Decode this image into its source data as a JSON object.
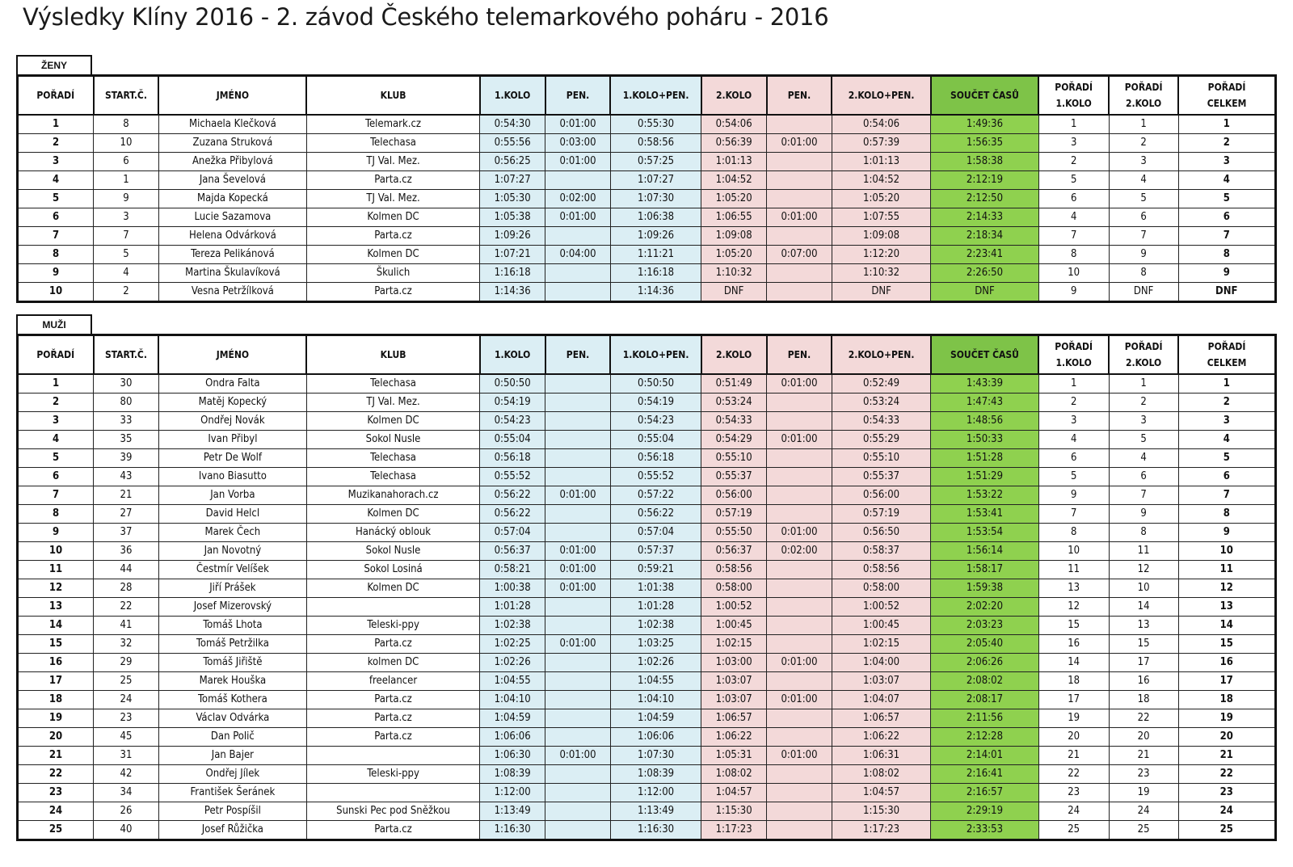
{
  "title": "Výsledky Klíny 2016 - 2. závod Českého telemarkového poháru - 2016",
  "colors": {
    "round1": "#dbeef4",
    "round2": "#f3d9d9",
    "total": "#8fd14f"
  },
  "headers": [
    "POŘADÍ",
    "START.Č.",
    "JMÉNO",
    "KLUB",
    "1.KOLO",
    "PEN.",
    "1.KOLO+PEN.",
    "2.KOLO",
    "PEN.",
    "2.KOLO+PEN.",
    "SOUČET ČASŮ",
    "POŘADÍ 1.KOLO",
    "POŘADÍ 2.KOLO",
    "POŘADÍ CELKEM"
  ],
  "sections": [
    {
      "label": "ŽENY",
      "rows": [
        [
          "1",
          "8",
          "Michaela Klečková",
          "Telemark.cz",
          "0:54:30",
          "0:01:00",
          "0:55:30",
          "0:54:06",
          "",
          "0:54:06",
          "1:49:36",
          "1",
          "1",
          "1"
        ],
        [
          "2",
          "10",
          "Zuzana Struková",
          "Telechasa",
          "0:55:56",
          "0:03:00",
          "0:58:56",
          "0:56:39",
          "0:01:00",
          "0:57:39",
          "1:56:35",
          "3",
          "2",
          "2"
        ],
        [
          "3",
          "6",
          "Anežka Přibylová",
          "TJ Val. Mez.",
          "0:56:25",
          "0:01:00",
          "0:57:25",
          "1:01:13",
          "",
          "1:01:13",
          "1:58:38",
          "2",
          "3",
          "3"
        ],
        [
          "4",
          "1",
          "Jana Ševelová",
          "Parta.cz",
          "1:07:27",
          "",
          "1:07:27",
          "1:04:52",
          "",
          "1:04:52",
          "2:12:19",
          "5",
          "4",
          "4"
        ],
        [
          "5",
          "9",
          "Majda Kopecká",
          "TJ Val. Mez.",
          "1:05:30",
          "0:02:00",
          "1:07:30",
          "1:05:20",
          "",
          "1:05:20",
          "2:12:50",
          "6",
          "5",
          "5"
        ],
        [
          "6",
          "3",
          "Lucie Sazamova",
          "Kolmen DC",
          "1:05:38",
          "0:01:00",
          "1:06:38",
          "1:06:55",
          "0:01:00",
          "1:07:55",
          "2:14:33",
          "4",
          "6",
          "6"
        ],
        [
          "7",
          "7",
          "Helena Odvárková",
          "Parta.cz",
          "1:09:26",
          "",
          "1:09:26",
          "1:09:08",
          "",
          "1:09:08",
          "2:18:34",
          "7",
          "7",
          "7"
        ],
        [
          "8",
          "5",
          "Tereza Pelikánová",
          "Kolmen DC",
          "1:07:21",
          "0:04:00",
          "1:11:21",
          "1:05:20",
          "0:07:00",
          "1:12:20",
          "2:23:41",
          "8",
          "9",
          "8"
        ],
        [
          "9",
          "4",
          "Martina Škulavíková",
          "Škulich",
          "1:16:18",
          "",
          "1:16:18",
          "1:10:32",
          "",
          "1:10:32",
          "2:26:50",
          "10",
          "8",
          "9"
        ],
        [
          "10",
          "2",
          "Vesna Petržílková",
          "Parta.cz",
          "1:14:36",
          "",
          "1:14:36",
          "DNF",
          "",
          "DNF",
          "DNF",
          "9",
          "DNF",
          "DNF"
        ]
      ]
    },
    {
      "label": "MUŽI",
      "rows": [
        [
          "1",
          "30",
          "Ondra Falta",
          "Telechasa",
          "0:50:50",
          "",
          "0:50:50",
          "0:51:49",
          "0:01:00",
          "0:52:49",
          "1:43:39",
          "1",
          "1",
          "1"
        ],
        [
          "2",
          "80",
          "Matěj Kopecký",
          "TJ Val. Mez.",
          "0:54:19",
          "",
          "0:54:19",
          "0:53:24",
          "",
          "0:53:24",
          "1:47:43",
          "2",
          "2",
          "2"
        ],
        [
          "3",
          "33",
          "Ondřej Novák",
          "Kolmen DC",
          "0:54:23",
          "",
          "0:54:23",
          "0:54:33",
          "",
          "0:54:33",
          "1:48:56",
          "3",
          "3",
          "3"
        ],
        [
          "4",
          "35",
          "Ivan Přibyl",
          "Sokol Nusle",
          "0:55:04",
          "",
          "0:55:04",
          "0:54:29",
          "0:01:00",
          "0:55:29",
          "1:50:33",
          "4",
          "5",
          "4"
        ],
        [
          "5",
          "39",
          "Petr De Wolf",
          "Telechasa",
          "0:56:18",
          "",
          "0:56:18",
          "0:55:10",
          "",
          "0:55:10",
          "1:51:28",
          "6",
          "4",
          "5"
        ],
        [
          "6",
          "43",
          "Ivano Biasutto",
          "Telechasa",
          "0:55:52",
          "",
          "0:55:52",
          "0:55:37",
          "",
          "0:55:37",
          "1:51:29",
          "5",
          "6",
          "6"
        ],
        [
          "7",
          "21",
          "Jan Vorba",
          "Muzikanahorach.cz",
          "0:56:22",
          "0:01:00",
          "0:57:22",
          "0:56:00",
          "",
          "0:56:00",
          "1:53:22",
          "9",
          "7",
          "7"
        ],
        [
          "8",
          "27",
          "David Helcl",
          "Kolmen DC",
          "0:56:22",
          "",
          "0:56:22",
          "0:57:19",
          "",
          "0:57:19",
          "1:53:41",
          "7",
          "9",
          "8"
        ],
        [
          "9",
          "37",
          "Marek Čech",
          "Hanácký oblouk",
          "0:57:04",
          "",
          "0:57:04",
          "0:55:50",
          "0:01:00",
          "0:56:50",
          "1:53:54",
          "8",
          "8",
          "9"
        ],
        [
          "10",
          "36",
          "Jan Novotný",
          "Sokol Nusle",
          "0:56:37",
          "0:01:00",
          "0:57:37",
          "0:56:37",
          "0:02:00",
          "0:58:37",
          "1:56:14",
          "10",
          "11",
          "10"
        ],
        [
          "11",
          "44",
          "Čestmír Velíšek",
          "Sokol Losiná",
          "0:58:21",
          "0:01:00",
          "0:59:21",
          "0:58:56",
          "",
          "0:58:56",
          "1:58:17",
          "11",
          "12",
          "11"
        ],
        [
          "12",
          "28",
          "Jiří Prášek",
          "Kolmen DC",
          "1:00:38",
          "0:01:00",
          "1:01:38",
          "0:58:00",
          "",
          "0:58:00",
          "1:59:38",
          "13",
          "10",
          "12"
        ],
        [
          "13",
          "22",
          "Josef Mizerovský",
          "",
          "1:01:28",
          "",
          "1:01:28",
          "1:00:52",
          "",
          "1:00:52",
          "2:02:20",
          "12",
          "14",
          "13"
        ],
        [
          "14",
          "41",
          "Tomáš Lhota",
          "Teleski-ppy",
          "1:02:38",
          "",
          "1:02:38",
          "1:00:45",
          "",
          "1:00:45",
          "2:03:23",
          "15",
          "13",
          "14"
        ],
        [
          "15",
          "32",
          "Tomáš Petržilka",
          "Parta.cz",
          "1:02:25",
          "0:01:00",
          "1:03:25",
          "1:02:15",
          "",
          "1:02:15",
          "2:05:40",
          "16",
          "15",
          "15"
        ],
        [
          "16",
          "29",
          "Tomáš Jiřiště",
          "kolmen DC",
          "1:02:26",
          "",
          "1:02:26",
          "1:03:00",
          "0:01:00",
          "1:04:00",
          "2:06:26",
          "14",
          "17",
          "16"
        ],
        [
          "17",
          "25",
          "Marek Houška",
          "freelancer",
          "1:04:55",
          "",
          "1:04:55",
          "1:03:07",
          "",
          "1:03:07",
          "2:08:02",
          "18",
          "16",
          "17"
        ],
        [
          "18",
          "24",
          "Tomáš Kothera",
          "Parta.cz",
          "1:04:10",
          "",
          "1:04:10",
          "1:03:07",
          "0:01:00",
          "1:04:07",
          "2:08:17",
          "17",
          "18",
          "18"
        ],
        [
          "19",
          "23",
          "Václav Odvárka",
          "Parta.cz",
          "1:04:59",
          "",
          "1:04:59",
          "1:06:57",
          "",
          "1:06:57",
          "2:11:56",
          "19",
          "22",
          "19"
        ],
        [
          "20",
          "45",
          "Dan Polič",
          "Parta.cz",
          "1:06:06",
          "",
          "1:06:06",
          "1:06:22",
          "",
          "1:06:22",
          "2:12:28",
          "20",
          "20",
          "20"
        ],
        [
          "21",
          "31",
          "Jan Bajer",
          "",
          "1:06:30",
          "0:01:00",
          "1:07:30",
          "1:05:31",
          "0:01:00",
          "1:06:31",
          "2:14:01",
          "21",
          "21",
          "21"
        ],
        [
          "22",
          "42",
          "Ondřej Jílek",
          "Teleski-ppy",
          "1:08:39",
          "",
          "1:08:39",
          "1:08:02",
          "",
          "1:08:02",
          "2:16:41",
          "22",
          "23",
          "22"
        ],
        [
          "23",
          "34",
          "František Šeránek",
          "",
          "1:12:00",
          "",
          "1:12:00",
          "1:04:57",
          "",
          "1:04:57",
          "2:16:57",
          "23",
          "19",
          "23"
        ],
        [
          "24",
          "26",
          "Petr Pospíšil",
          "Sunski Pec pod Sněžkou",
          "1:13:49",
          "",
          "1:13:49",
          "1:15:30",
          "",
          "1:15:30",
          "2:29:19",
          "24",
          "24",
          "24"
        ],
        [
          "25",
          "40",
          "Josef Růžička",
          "Parta.cz",
          "1:16:30",
          "",
          "1:16:30",
          "1:17:23",
          "",
          "1:17:23",
          "2:33:53",
          "25",
          "25",
          "25"
        ]
      ]
    }
  ]
}
